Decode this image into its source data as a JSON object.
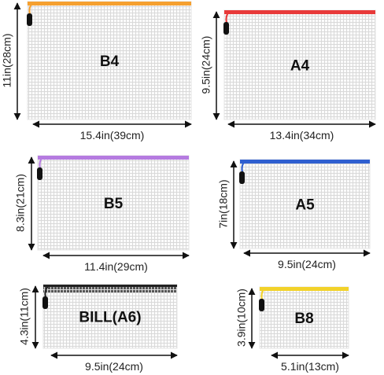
{
  "items": [
    {
      "label": "B4",
      "width": "15.4in(39cm)",
      "height": "11in(28cm)",
      "zipper_color": "#f5a030"
    },
    {
      "label": "A4",
      "width": "13.4in(34cm)",
      "height": "9.5in(24cm)",
      "zipper_color": "#e83a3a"
    },
    {
      "label": "B5",
      "width": "11.4in(29cm)",
      "height": "8.3in(21cm)",
      "zipper_color": "#b57be0"
    },
    {
      "label": "A5",
      "width": "9.5in(24cm)",
      "height": "7in(18cm)",
      "zipper_color": "#2f5fd0"
    },
    {
      "label": "BILL(A6)",
      "width": "9.5in(24cm)",
      "height": "4.3in(11cm)",
      "zipper_color": "#222222"
    },
    {
      "label": "B8",
      "width": "5.1in(13cm)",
      "height": "3.9in(10cm)",
      "zipper_color": "#f2d22a"
    }
  ]
}
